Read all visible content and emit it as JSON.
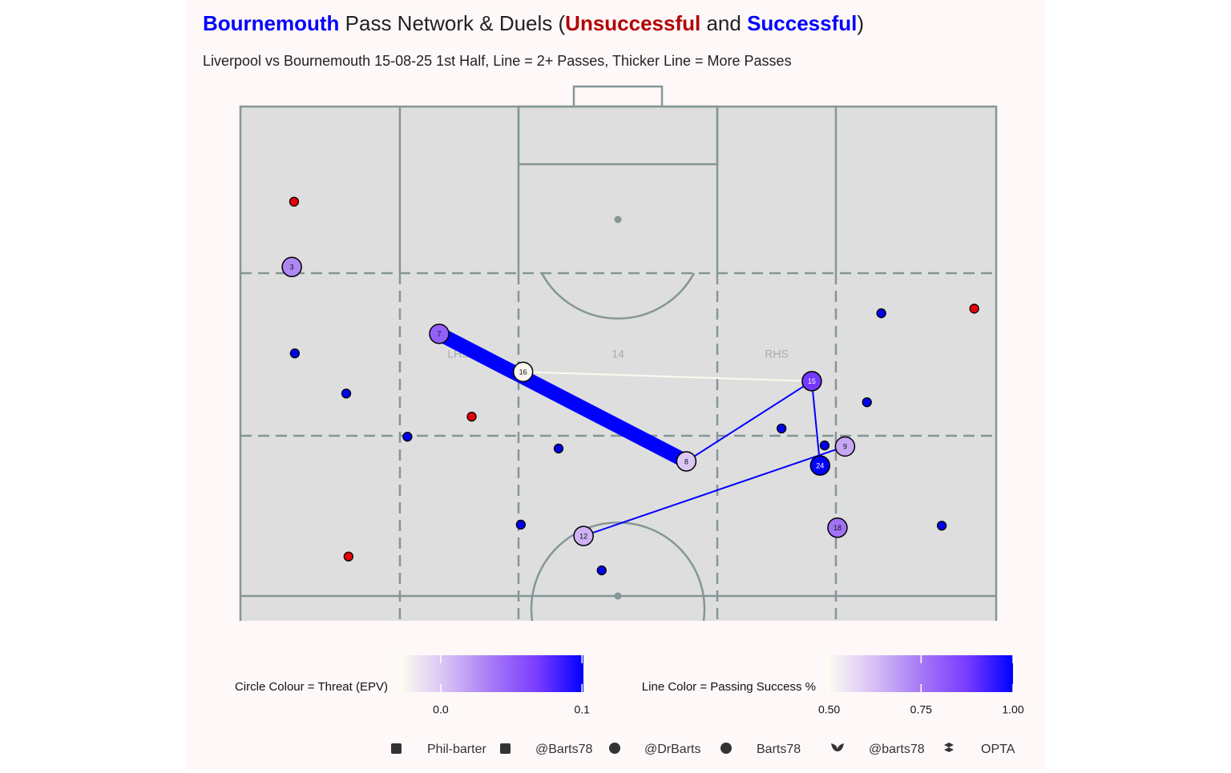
{
  "chart_data": {
    "type": "pass-network",
    "title": [
      {
        "text": "Bournemouth",
        "color": "#0000ff",
        "bold": true
      },
      {
        "text": " Pass Network & Duels (",
        "color": "#222222",
        "bold": false
      },
      {
        "text": "Unsuccessful",
        "color": "#b20000",
        "bold": true
      },
      {
        "text": " and ",
        "color": "#222222",
        "bold": false
      },
      {
        "text": "Successful",
        "color": "#0000ff",
        "bold": true
      },
      {
        "text": ")",
        "color": "#222222",
        "bold": false
      }
    ],
    "subtitle": "Liverpool vs Bournemouth 15-08-25 1st Half, Line = 2+ Passes, Thicker Line = More Passes",
    "xlim": [
      0,
      100
    ],
    "ylim": [
      0,
      100
    ],
    "zone_labels": [
      "LHS",
      "14",
      "RHS"
    ],
    "palette": [
      "#fffff0",
      "#d9c2f5",
      "#a77bf5",
      "#7a3cff",
      "#0000ff"
    ],
    "nodes": [
      {
        "label": "3",
        "x": 6.8,
        "y": 31.2,
        "epv": 0.03
      },
      {
        "label": "7",
        "x": 26.3,
        "y": 44.2,
        "epv": 0.05
      },
      {
        "label": "16",
        "x": 37.4,
        "y": 51.6,
        "epv": -0.025
      },
      {
        "label": "8",
        "x": 59.0,
        "y": 69.0,
        "epv": 0.0
      },
      {
        "label": "15",
        "x": 75.6,
        "y": 53.4,
        "epv": 0.07
      },
      {
        "label": "9",
        "x": 80.0,
        "y": 66.1,
        "epv": 0.015
      },
      {
        "label": "24",
        "x": 76.7,
        "y": 69.8,
        "epv": 0.1
      },
      {
        "label": "12",
        "x": 45.4,
        "y": 83.5,
        "epv": 0.01
      },
      {
        "label": "18",
        "x": 79.0,
        "y": 81.9,
        "epv": 0.04
      }
    ],
    "edges": [
      {
        "from": 1,
        "to": 3,
        "passes": 10,
        "success": 1.0
      },
      {
        "from": 2,
        "to": 4,
        "passes": 2,
        "success": 0.5
      },
      {
        "from": 3,
        "to": 4,
        "passes": 2,
        "success": 1.0
      },
      {
        "from": 4,
        "to": 6,
        "passes": 2,
        "success": 1.0
      },
      {
        "from": 7,
        "to": 5,
        "passes": 2,
        "success": 1.0
      }
    ],
    "series": [
      {
        "name": "Unsuccessful",
        "color": "#e8000b",
        "x": [
          7.1,
          30.6,
          14.3,
          97.1
        ],
        "y": [
          18.5,
          60.3,
          87.5,
          39.3
        ]
      },
      {
        "name": "Successful",
        "color": "#0000ee",
        "x": [
          7.2,
          14.0,
          22.1,
          42.1,
          37.1,
          47.8,
          71.6,
          77.3,
          84.8,
          82.9,
          92.8
        ],
        "y": [
          48.0,
          55.8,
          64.2,
          66.5,
          81.3,
          90.2,
          62.6,
          65.9,
          40.2,
          57.5,
          81.5
        ]
      }
    ],
    "legends": [
      {
        "title": "Circle Colour = Threat (EPV)",
        "range": [
          -0.03,
          0.101
        ],
        "ticks": [
          {
            "value": 0,
            "label": "0.0"
          },
          0.1
        ]
      },
      {
        "title": "Line Color = Passing Success %",
        "range": [
          0.49,
          1.0
        ],
        "ticks": [
          {
            "value": 0.5,
            "label": "0.50"
          },
          0.75,
          {
            "value": 1,
            "label": "1.00"
          }
        ]
      }
    ],
    "footer": [
      "Phil-barter",
      "@Barts78",
      "@DrBarts",
      "Barts78",
      "@barts78",
      "OPTA"
    ]
  }
}
